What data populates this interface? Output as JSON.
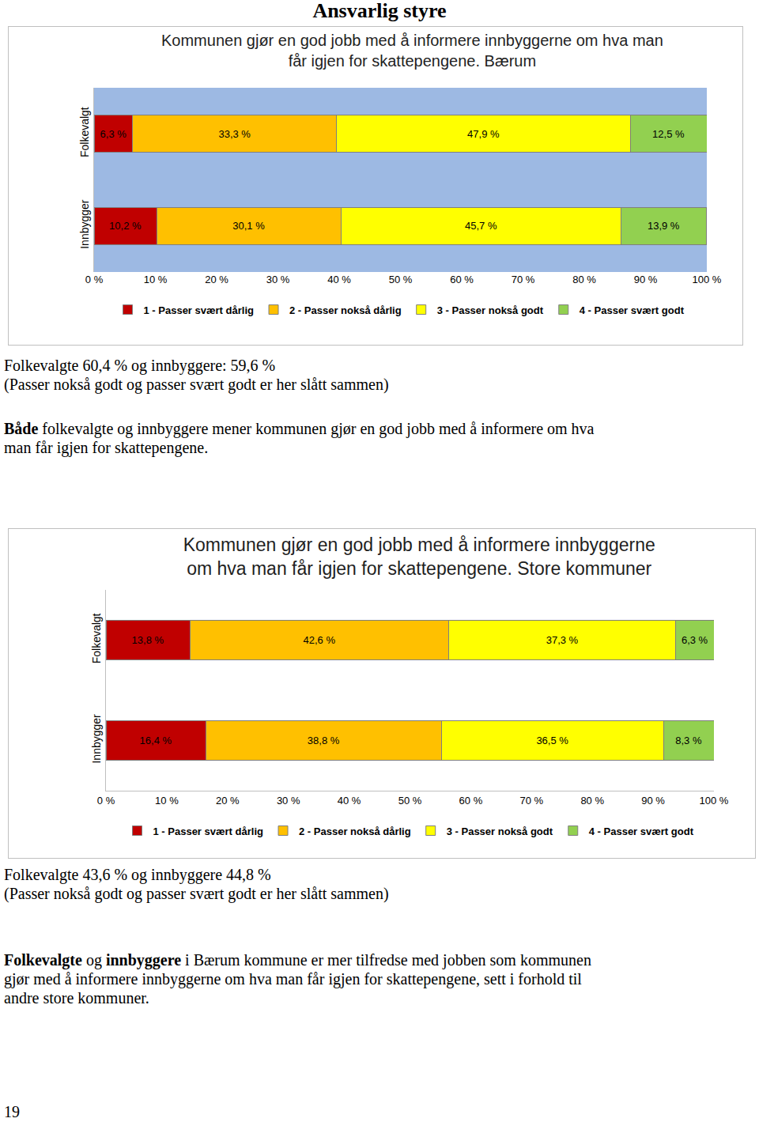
{
  "heading": "Ansvarlig styre",
  "chart_data": [
    {
      "type": "bar",
      "title": [
        "Kommunen gjør en god jobb med å informere innbyggerne om hva man",
        "får igjen for skattepengene. Bærum"
      ],
      "orientation": "horizontal",
      "stacked": true,
      "data_labels": true,
      "legend": "bottom",
      "grid": false,
      "categories": [
        "Folkevalgt",
        "Innbygger"
      ],
      "xlim": [
        0,
        100
      ],
      "xticks": [
        {
          "value": 0,
          "label": "0 %"
        },
        {
          "value": 10,
          "label": "10 %"
        },
        {
          "value": 20,
          "label": "20 %"
        },
        {
          "value": 30,
          "label": "30 %"
        },
        {
          "value": 40,
          "label": "40 %"
        },
        {
          "value": 50,
          "label": "50 %"
        },
        {
          "value": 60,
          "label": "60 %"
        },
        {
          "value": 70,
          "label": "70 %"
        },
        {
          "value": 80,
          "label": "80 %"
        },
        {
          "value": 90,
          "label": "90 %"
        },
        {
          "value": 100,
          "label": "100 %"
        }
      ],
      "series": [
        {
          "name": "1 - Passer svært dårlig",
          "color": "#C00000",
          "values": [
            6.3,
            10.2
          ],
          "value_labels": [
            "6,3 %",
            "10,2 %"
          ]
        },
        {
          "name": "2 - Passer nokså dårlig",
          "color": "#FFC000",
          "values": [
            33.3,
            30.1
          ],
          "value_labels": [
            "33,3 %",
            "30,1 %"
          ]
        },
        {
          "name": "3 - Passer nokså godt",
          "color": "#FFFF00",
          "values": [
            47.9,
            45.7
          ],
          "value_labels": [
            "47,9 %",
            "45,7 %"
          ]
        },
        {
          "name": "4 - Passer svært godt",
          "color": "#92D050",
          "values": [
            12.5,
            13.9
          ],
          "value_labels": [
            "12,5 %",
            "13,9 %"
          ]
        }
      ]
    },
    {
      "type": "bar",
      "title": [
        "Kommunen gjør en god jobb med å informere innbyggerne",
        "om hva man får igjen for skattepengene. Store kommuner"
      ],
      "orientation": "horizontal",
      "stacked": true,
      "data_labels": true,
      "legend": "bottom",
      "grid": false,
      "categories": [
        "Folkevalgt",
        "Innbygger"
      ],
      "xlim": [
        0,
        100
      ],
      "xticks": [
        {
          "value": 0,
          "label": "0 %"
        },
        {
          "value": 10,
          "label": "10 %"
        },
        {
          "value": 20,
          "label": "20 %"
        },
        {
          "value": 30,
          "label": "30 %"
        },
        {
          "value": 40,
          "label": "40 %"
        },
        {
          "value": 50,
          "label": "50 %"
        },
        {
          "value": 60,
          "label": "60 %"
        },
        {
          "value": 70,
          "label": "70 %"
        },
        {
          "value": 80,
          "label": "80 %"
        },
        {
          "value": 90,
          "label": "90 %"
        },
        {
          "value": 100,
          "label": "100 %"
        }
      ],
      "series": [
        {
          "name": "1 - Passer svært dårlig",
          "color": "#C00000",
          "values": [
            13.8,
            16.4
          ],
          "value_labels": [
            "13,8 %",
            "16,4 %"
          ]
        },
        {
          "name": "2 - Passer nokså dårlig",
          "color": "#FFC000",
          "values": [
            42.6,
            38.8
          ],
          "value_labels": [
            "42,6 %",
            "38,8 %"
          ]
        },
        {
          "name": "3 - Passer nokså godt",
          "color": "#FFFF00",
          "values": [
            37.3,
            36.5
          ],
          "value_labels": [
            "37,3 %",
            "36,5 %"
          ]
        },
        {
          "name": "4 - Passer svært godt",
          "color": "#92D050",
          "values": [
            6.3,
            8.3
          ],
          "value_labels": [
            "6,3 %",
            "8,3 %"
          ]
        }
      ]
    }
  ],
  "texts": [
    {
      "lines": [
        [
          {
            "text": "Folkevalgte 60,4 % og innbyggere: 59,6 %"
          }
        ],
        [
          {
            "text": "(Passer nokså godt og passer svært godt er her slått sammen)"
          }
        ]
      ]
    },
    {
      "lines": [
        [
          {
            "text": "Både",
            "bold": true
          },
          {
            "text": " folkevalgte og innbyggere mener kommunen gjør en god jobb med å informere om hva"
          }
        ],
        [
          {
            "text": "man får igjen for skattepengene."
          }
        ]
      ]
    },
    {
      "lines": [
        [
          {
            "text": "Folkevalgte 43,6 % og innbyggere 44,8 %"
          }
        ],
        [
          {
            "text": "(Passer nokså godt og passer svært godt er her slått sammen)"
          }
        ]
      ]
    },
    {
      "lines": [
        [
          {
            "text": "Folkevalgte",
            "bold": true
          },
          {
            "text": " og "
          },
          {
            "text": "innbyggere",
            "bold": true
          },
          {
            "text": " i Bærum kommune er mer tilfredse med jobben som kommunen"
          }
        ],
        [
          {
            "text": "gjør med å informere innbyggerne om hva man får igjen for skattepengene, sett i forhold til"
          }
        ],
        [
          {
            "text": "andre store kommuner."
          }
        ]
      ]
    }
  ],
  "page_number": "19"
}
